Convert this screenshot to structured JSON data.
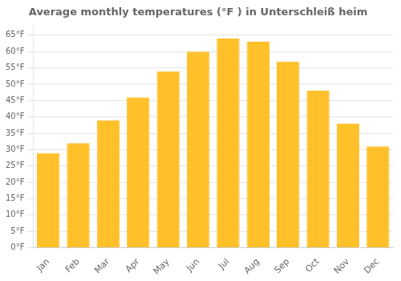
{
  "chart_data": {
    "type": "bar",
    "title": "Average monthly temperatures (°F ) in Unterschleiß heim",
    "categories": [
      "Jan",
      "Feb",
      "Mar",
      "Apr",
      "May",
      "Jun",
      "Jul",
      "Aug",
      "Sep",
      "Oct",
      "Nov",
      "Dec"
    ],
    "values": [
      29,
      32,
      39,
      46,
      54,
      60,
      64,
      63,
      57,
      48,
      38,
      31
    ],
    "color": "#FFC02A",
    "ylim": [
      0,
      68
    ],
    "yticks": [
      {
        "value": 0,
        "label": "0°F"
      },
      {
        "value": 5,
        "label": "5°F"
      },
      {
        "value": 10,
        "label": "10°F"
      },
      {
        "value": 15,
        "label": "15°F"
      },
      {
        "value": 20,
        "label": "20°F"
      },
      {
        "value": 25,
        "label": "25°F"
      },
      {
        "value": 30,
        "label": "30°F"
      },
      {
        "value": 35,
        "label": "35°F"
      },
      {
        "value": 40,
        "label": "40°F"
      },
      {
        "value": 45,
        "label": "45°F"
      },
      {
        "value": 50,
        "label": "50°F"
      },
      {
        "value": 55,
        "label": "55°F"
      },
      {
        "value": 60,
        "label": "60°F"
      },
      {
        "value": 65,
        "label": "65°F"
      }
    ],
    "grid": true
  }
}
